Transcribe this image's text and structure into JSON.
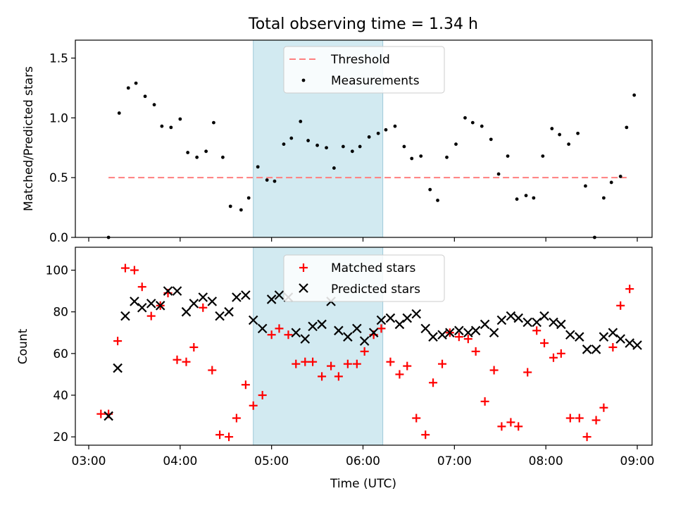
{
  "chart_data": [
    {
      "type": "scatter",
      "title": "Total observing time = 1.34 h",
      "xlabel": "",
      "ylabel": "Matched/Predicted stars",
      "xlim": [
        "03:00",
        "09:00"
      ],
      "ylim": [
        0,
        1.65
      ],
      "yticks": [
        0.0,
        0.5,
        1.0,
        1.5
      ],
      "ytick_labels": [
        "0.0",
        "0.5",
        "1.0",
        "1.5"
      ],
      "highlight_span": {
        "start": "04:48",
        "end": "06:13",
        "color": "#add8e6"
      },
      "threshold": {
        "name": "Threshold",
        "value": 0.5,
        "x_start": "03:13",
        "x_end": "08:53",
        "color": "#ff7f7f"
      },
      "legend": {
        "position": "upper center",
        "entries": [
          "Threshold",
          "Measurements"
        ]
      },
      "series": [
        {
          "name": "Measurements",
          "color": "#000000",
          "x": [
            "03:13",
            "03:20",
            "03:26",
            "03:31",
            "03:37",
            "03:43",
            "03:48",
            "03:54",
            "04:00",
            "04:05",
            "04:11",
            "04:17",
            "04:22",
            "04:28",
            "04:33",
            "04:40",
            "04:45",
            "04:51",
            "04:57",
            "05:02",
            "05:08",
            "05:13",
            "05:19",
            "05:24",
            "05:30",
            "05:36",
            "05:41",
            "05:47",
            "05:53",
            "05:58",
            "06:04",
            "06:10",
            "06:15",
            "06:21",
            "06:27",
            "06:32",
            "06:38",
            "06:44",
            "06:49",
            "06:55",
            "07:01",
            "07:07",
            "07:12",
            "07:18",
            "07:24",
            "07:29",
            "07:35",
            "07:41",
            "07:47",
            "07:52",
            "07:58",
            "08:04",
            "08:09",
            "08:15",
            "08:21",
            "08:26",
            "08:32",
            "08:38",
            "08:43",
            "08:49",
            "08:53",
            "08:58"
          ],
          "y": [
            0.0,
            1.04,
            1.25,
            1.29,
            1.18,
            1.11,
            0.93,
            0.92,
            0.99,
            0.71,
            0.67,
            0.72,
            0.96,
            0.67,
            0.26,
            0.23,
            0.33,
            0.59,
            0.48,
            0.47,
            0.78,
            0.83,
            0.97,
            0.81,
            0.77,
            0.75,
            0.58,
            0.76,
            0.72,
            0.76,
            0.84,
            0.87,
            0.9,
            0.93,
            0.76,
            0.66,
            0.68,
            0.4,
            0.31,
            0.67,
            0.78,
            1.0,
            0.96,
            0.93,
            0.82,
            0.53,
            0.68,
            0.32,
            0.35,
            0.33,
            0.68,
            0.91,
            0.86,
            0.78,
            0.87,
            0.43,
            0.0,
            0.33,
            0.46,
            0.51,
            0.92,
            1.19
          ]
        }
      ]
    },
    {
      "type": "scatter",
      "title": "",
      "xlabel": "Time (UTC)",
      "ylabel": "Count",
      "xlim": [
        "03:00",
        "09:00"
      ],
      "xticks": [
        "03:00",
        "04:00",
        "05:00",
        "06:00",
        "07:00",
        "08:00",
        "09:00"
      ],
      "ylim": [
        16,
        111
      ],
      "yticks": [
        20,
        40,
        60,
        80,
        100
      ],
      "highlight_span": {
        "start": "04:48",
        "end": "06:13",
        "color": "#add8e6"
      },
      "legend": {
        "position": "upper center",
        "entries": [
          "Matched stars",
          "Predicted stars"
        ]
      },
      "series": [
        {
          "name": "Matched stars",
          "marker": "+",
          "color": "#ff0000",
          "x": [
            "03:08",
            "03:13",
            "03:19",
            "03:24",
            "03:30",
            "03:35",
            "03:41",
            "03:47",
            "03:52",
            "03:58",
            "04:04",
            "04:09",
            "04:15",
            "04:21",
            "04:26",
            "04:32",
            "04:37",
            "04:43",
            "04:48",
            "04:54",
            "05:00",
            "05:05",
            "05:11",
            "05:16",
            "05:22",
            "05:27",
            "05:33",
            "05:39",
            "05:44",
            "05:50",
            "05:56",
            "06:01",
            "06:07",
            "06:12",
            "06:18",
            "06:24",
            "06:29",
            "06:35",
            "06:41",
            "06:46",
            "06:52",
            "06:57",
            "07:03",
            "07:09",
            "07:14",
            "07:20",
            "07:26",
            "07:31",
            "07:37",
            "07:42",
            "07:48",
            "07:54",
            "07:59",
            "08:05",
            "08:10",
            "08:16",
            "08:22",
            "08:27",
            "08:33",
            "08:38",
            "08:44",
            "08:49",
            "08:55"
          ],
          "y": [
            31,
            31,
            66,
            101,
            100,
            92,
            78,
            83,
            89,
            57,
            56,
            63,
            82,
            52,
            21,
            20,
            29,
            45,
            35,
            40,
            69,
            72,
            69,
            55,
            56,
            56,
            49,
            54,
            49,
            55,
            55,
            61,
            69,
            72,
            56,
            50,
            54,
            29,
            21,
            46,
            55,
            70,
            68,
            67,
            61,
            37,
            52,
            25,
            27,
            25,
            51,
            71,
            65,
            58,
            60,
            29,
            29,
            20,
            28,
            34,
            63,
            83,
            91
          ]
        },
        {
          "name": "Predicted stars",
          "marker": "x",
          "color": "#000000",
          "x": [
            "03:13",
            "03:19",
            "03:24",
            "03:30",
            "03:35",
            "03:41",
            "03:47",
            "03:52",
            "03:58",
            "04:04",
            "04:09",
            "04:15",
            "04:21",
            "04:26",
            "04:32",
            "04:37",
            "04:43",
            "04:48",
            "04:54",
            "05:00",
            "05:05",
            "05:11",
            "05:16",
            "05:22",
            "05:27",
            "05:33",
            "05:39",
            "05:44",
            "05:50",
            "05:56",
            "06:01",
            "06:07",
            "06:12",
            "06:18",
            "06:24",
            "06:29",
            "06:35",
            "06:41",
            "06:46",
            "06:52",
            "06:57",
            "07:03",
            "07:09",
            "07:14",
            "07:20",
            "07:26",
            "07:31",
            "07:37",
            "07:42",
            "07:48",
            "07:54",
            "07:59",
            "08:05",
            "08:10",
            "08:16",
            "08:22",
            "08:27",
            "08:33",
            "08:38",
            "08:44",
            "08:49",
            "08:55",
            "09:00"
          ],
          "y": [
            30,
            53,
            78,
            85,
            82,
            84,
            83,
            90,
            90,
            80,
            84,
            87,
            85,
            78,
            80,
            87,
            88,
            76,
            72,
            86,
            88,
            87,
            70,
            67,
            73,
            74,
            85,
            71,
            68,
            72,
            66,
            70,
            76,
            77,
            74,
            77,
            79,
            72,
            68,
            69,
            70,
            71,
            70,
            71,
            74,
            70,
            76,
            78,
            77,
            75,
            75,
            78,
            75,
            74,
            69,
            68,
            62,
            62,
            68,
            70,
            67,
            65,
            64
          ]
        }
      ]
    }
  ]
}
